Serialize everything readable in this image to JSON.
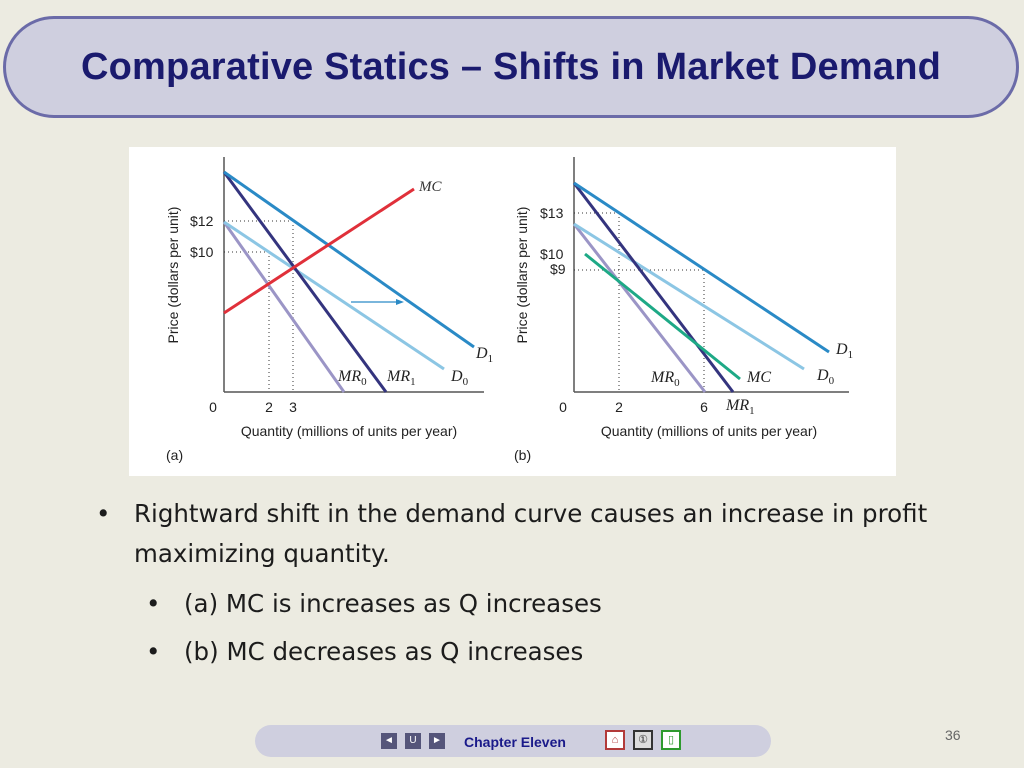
{
  "slide": {
    "title": "Comparative Statics – Shifts in Market Demand",
    "page_number": "36"
  },
  "bullets": {
    "main": "Rightward shift in the demand curve causes an increase in profit maximizing quantity.",
    "sub": [
      "(a) MC is increases as Q increases",
      "(b) MC decreases as Q increases"
    ]
  },
  "footer": {
    "chapter": "Chapter Eleven",
    "prev_icon": "triangle-left-icon",
    "up_icon": "return-icon",
    "next_icon": "triangle-right-icon",
    "home_icon": "home-icon",
    "info_icon": "info-icon",
    "exit_icon": "exit-door-icon"
  },
  "figure": {
    "panel_a": {
      "panel_label": "(a)",
      "ylabel": "Price (dollars per unit)",
      "xlabel": "Quantity (millions of units per year)",
      "y_ticks": [
        "$12",
        "$10"
      ],
      "x_ticks": [
        "0",
        "2",
        "3"
      ],
      "curves": [
        "MC",
        "D1",
        "D0",
        "MR0",
        "MR1"
      ]
    },
    "panel_b": {
      "panel_label": "(b)",
      "ylabel": "Price (dollars per unit)",
      "xlabel": "Quantity (millions of units per year)",
      "y_ticks": [
        "$13",
        "$10",
        "$9"
      ],
      "x_ticks": [
        "0",
        "2",
        "6"
      ],
      "curves": [
        "D1",
        "D0",
        "MC",
        "MR0",
        "MR1"
      ]
    },
    "colors": {
      "demand_new": "#2a8ac6",
      "demand_old": "#8cc6e4",
      "mr_old": "#9b95c6",
      "mr_new": "#34347e",
      "mc_a": "#e0303a",
      "mc_b": "#1ea986",
      "arrow": "#2a8ac6"
    }
  }
}
